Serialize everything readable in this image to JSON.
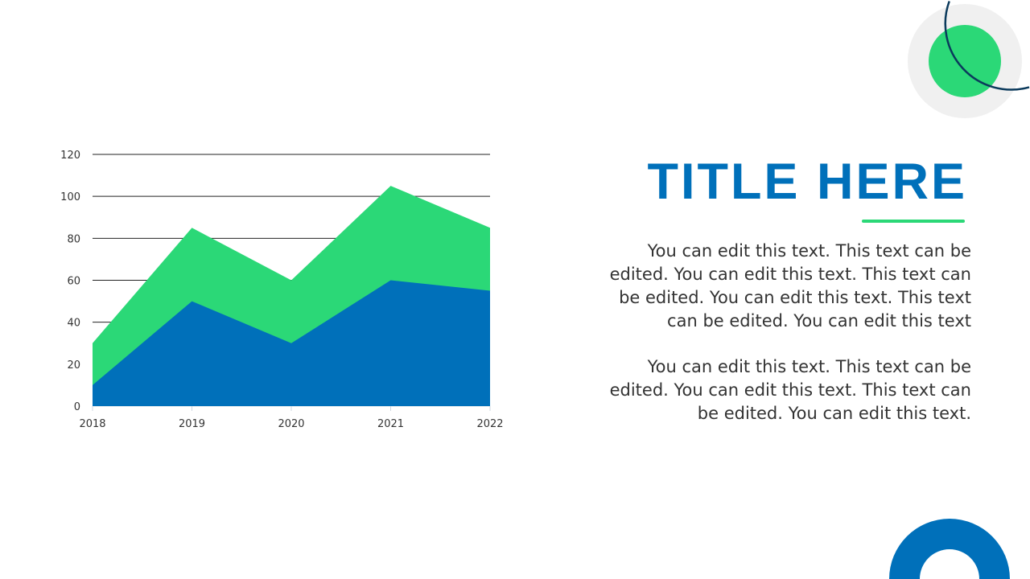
{
  "slide": {
    "title": "TITLE HERE",
    "paragraphs": [
      "You can edit this text. This text can be edited. You can edit this text. This text can be edited. You can edit this text. This text can be edited. You can edit this text",
      "You can edit this text. This text can be edited. You can edit this text. This text can be edited. You can edit this text."
    ],
    "colors": {
      "primary": "#0070BA",
      "accent": "#2BD877",
      "navy": "#0B3A5C",
      "light_gray": "#F0F0F0"
    }
  },
  "chart_data": {
    "type": "area",
    "categories": [
      "2018",
      "2019",
      "2020",
      "2021",
      "2022"
    ],
    "series": [
      {
        "values": [
          30,
          85,
          60,
          105,
          85
        ],
        "color": "#2BD877"
      },
      {
        "values": [
          10,
          50,
          30,
          60,
          55
        ],
        "color": "#0070BA"
      }
    ],
    "ylim": [
      0,
      120
    ],
    "yticks": [
      "0",
      "20",
      "40",
      "60",
      "80",
      "100",
      "120"
    ],
    "grid": true,
    "legend": "none"
  }
}
